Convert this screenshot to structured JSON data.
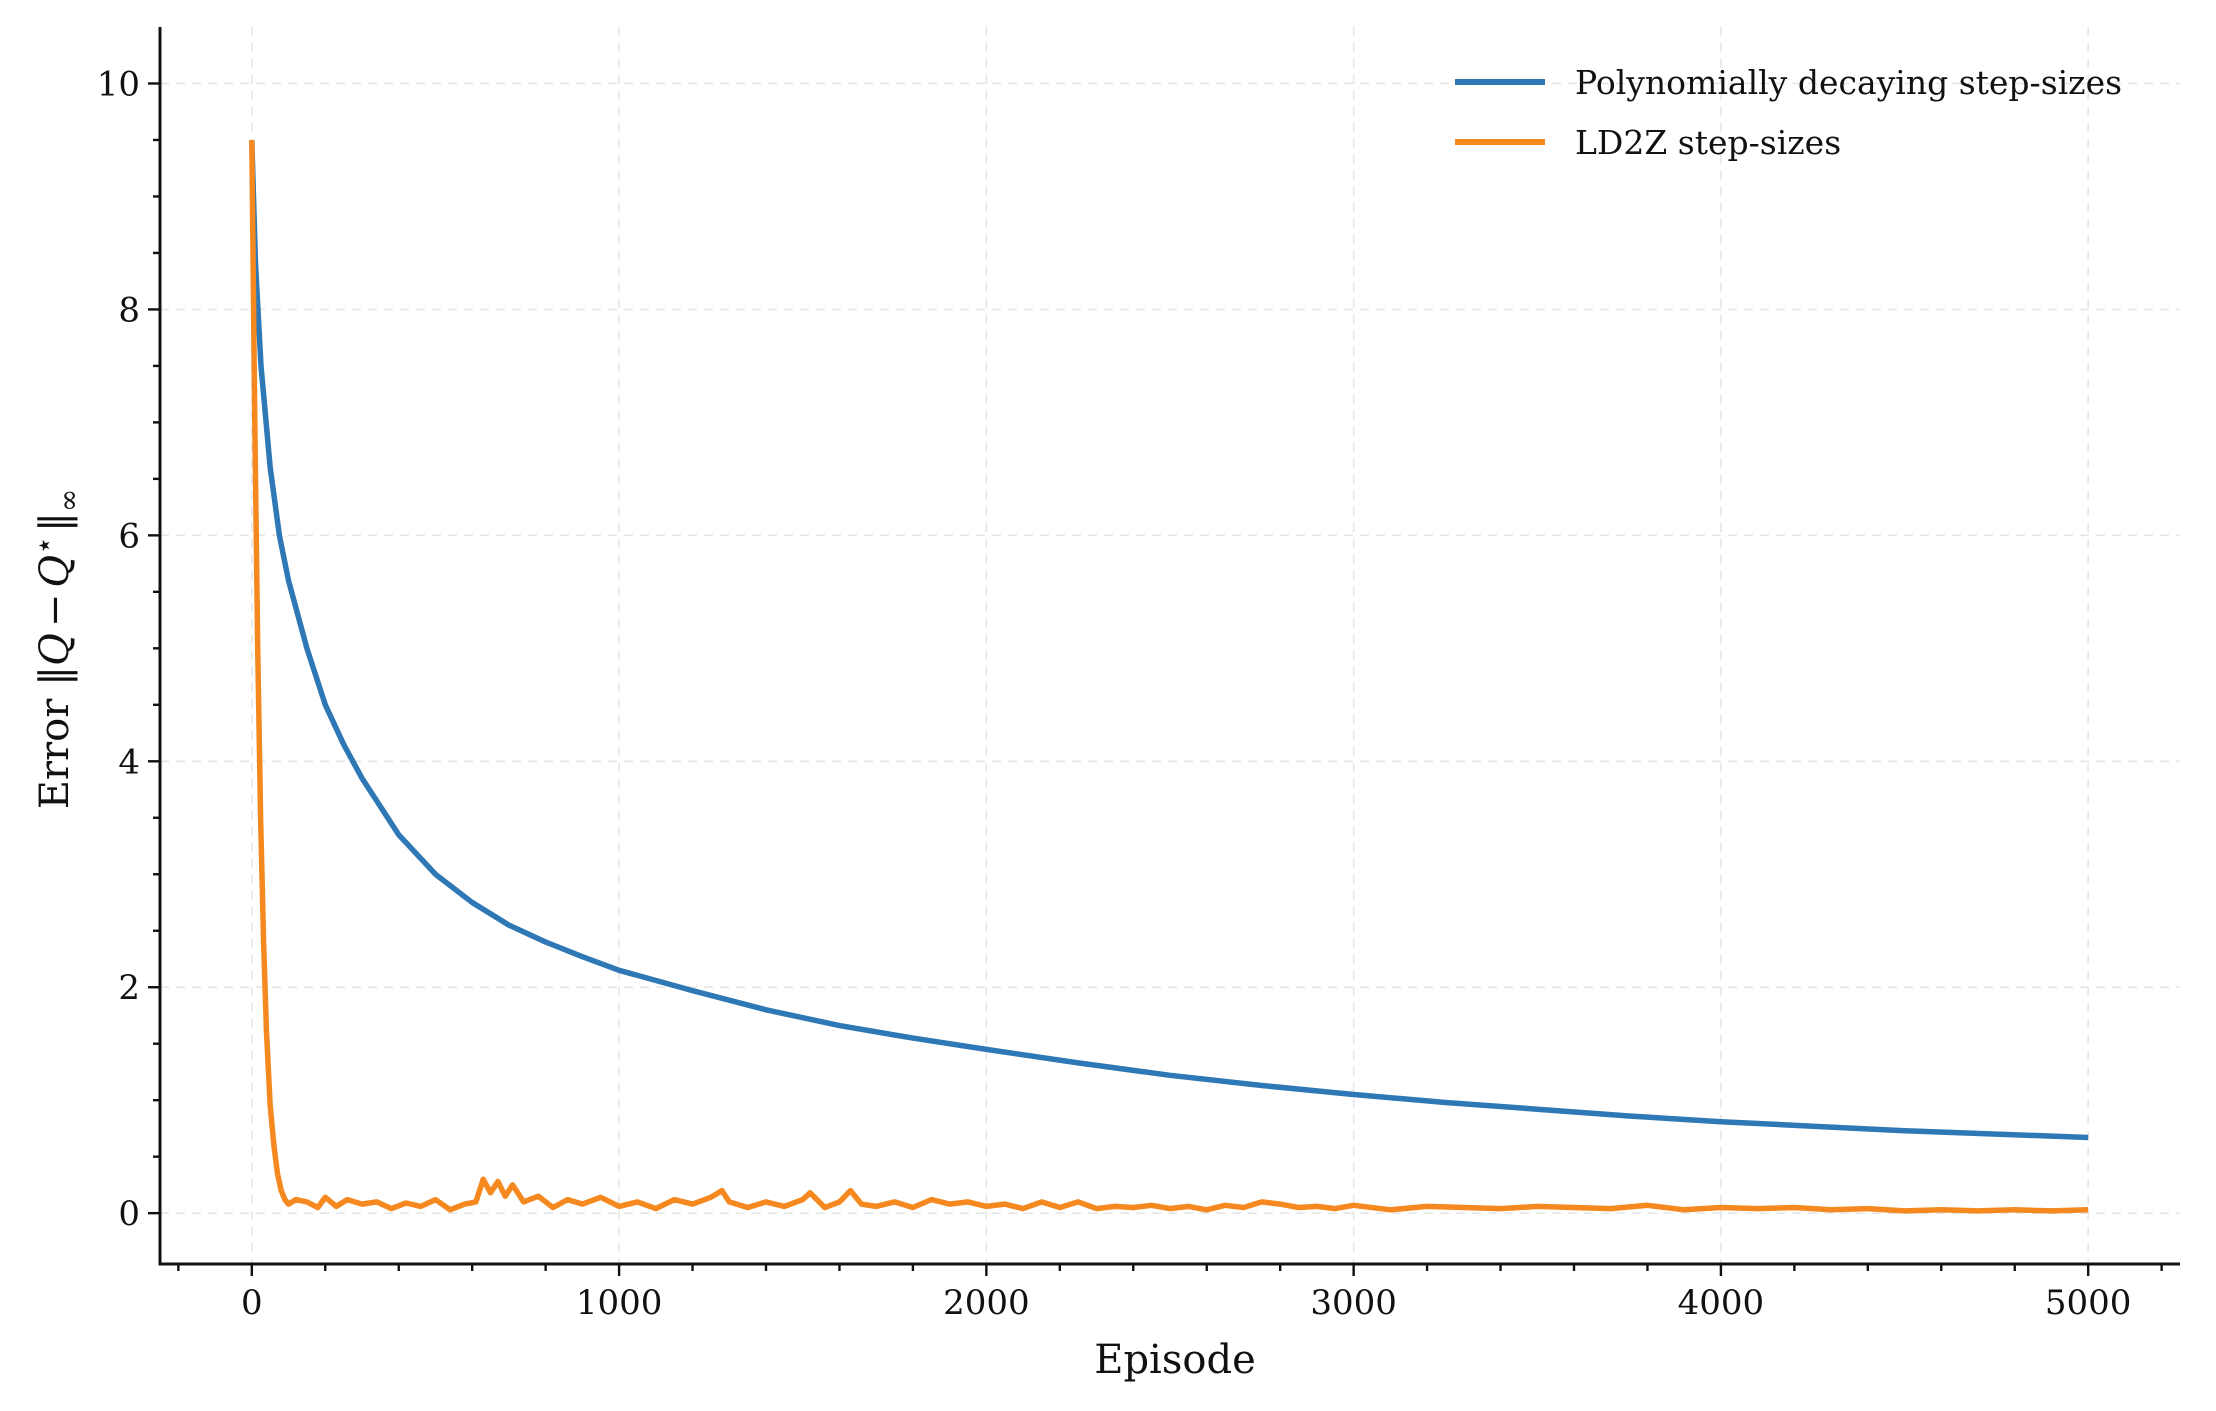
{
  "chart_data": {
    "type": "line",
    "title": "",
    "xlabel": "Episode",
    "ylabel": "Error ‖Q − Q⋆‖∞",
    "ylabel_parts": {
      "prefix": "Error ‖",
      "var": "Q",
      "minus": "−",
      "var2": "Q",
      "star": "⋆",
      "suffix": "‖",
      "sub": "∞"
    },
    "xlim": [
      -250,
      5250
    ],
    "ylim": [
      -0.45,
      10.5
    ],
    "xticks": [
      0,
      1000,
      2000,
      3000,
      4000,
      5000
    ],
    "xtick_labels": [
      "0",
      "1000",
      "2000",
      "3000",
      "4000",
      "5000"
    ],
    "yticks": [
      0,
      2,
      4,
      6,
      8,
      10
    ],
    "ytick_labels": [
      "0",
      "2",
      "4",
      "6",
      "8",
      "10"
    ],
    "grid": true,
    "legend_position": "top-right",
    "series": [
      {
        "name": "Polynomially decaying step-sizes",
        "color": "#2e78b5",
        "x": [
          0,
          10,
          25,
          50,
          75,
          100,
          150,
          200,
          250,
          300,
          400,
          500,
          600,
          700,
          800,
          900,
          1000,
          1200,
          1400,
          1600,
          1800,
          2000,
          2250,
          2500,
          2750,
          3000,
          3250,
          3500,
          3750,
          4000,
          4250,
          4500,
          4750,
          5000
        ],
        "y": [
          9.5,
          8.4,
          7.5,
          6.6,
          6.0,
          5.6,
          5.0,
          4.5,
          4.15,
          3.85,
          3.35,
          3.0,
          2.75,
          2.55,
          2.4,
          2.27,
          2.15,
          1.97,
          1.8,
          1.66,
          1.55,
          1.45,
          1.33,
          1.22,
          1.13,
          1.05,
          0.98,
          0.92,
          0.86,
          0.81,
          0.77,
          0.73,
          0.7,
          0.67
        ]
      },
      {
        "name": "LD2Z step-sizes",
        "color": "#f5891f",
        "x": [
          0,
          8,
          16,
          24,
          32,
          40,
          50,
          60,
          70,
          80,
          90,
          100,
          120,
          150,
          180,
          200,
          230,
          260,
          300,
          340,
          380,
          420,
          460,
          500,
          540,
          580,
          610,
          630,
          650,
          670,
          690,
          710,
          740,
          780,
          820,
          860,
          900,
          950,
          1000,
          1050,
          1100,
          1150,
          1200,
          1250,
          1280,
          1300,
          1350,
          1400,
          1450,
          1500,
          1520,
          1560,
          1600,
          1630,
          1660,
          1700,
          1750,
          1800,
          1850,
          1900,
          1950,
          2000,
          2050,
          2100,
          2150,
          2200,
          2250,
          2300,
          2350,
          2400,
          2450,
          2500,
          2550,
          2600,
          2650,
          2700,
          2750,
          2800,
          2850,
          2900,
          2950,
          3000,
          3100,
          3200,
          3300,
          3400,
          3500,
          3600,
          3700,
          3800,
          3900,
          4000,
          4100,
          4200,
          4300,
          4400,
          4500,
          4600,
          4700,
          4800,
          4900,
          5000
        ],
        "y": [
          9.5,
          7.0,
          5.0,
          3.5,
          2.4,
          1.6,
          0.95,
          0.6,
          0.35,
          0.2,
          0.12,
          0.08,
          0.12,
          0.1,
          0.05,
          0.14,
          0.06,
          0.12,
          0.08,
          0.1,
          0.04,
          0.09,
          0.06,
          0.12,
          0.03,
          0.08,
          0.1,
          0.3,
          0.18,
          0.28,
          0.15,
          0.25,
          0.1,
          0.15,
          0.05,
          0.12,
          0.08,
          0.14,
          0.06,
          0.1,
          0.04,
          0.12,
          0.08,
          0.14,
          0.2,
          0.1,
          0.05,
          0.1,
          0.06,
          0.12,
          0.18,
          0.05,
          0.1,
          0.2,
          0.08,
          0.06,
          0.1,
          0.05,
          0.12,
          0.08,
          0.1,
          0.06,
          0.08,
          0.04,
          0.1,
          0.05,
          0.1,
          0.04,
          0.06,
          0.05,
          0.07,
          0.04,
          0.06,
          0.03,
          0.07,
          0.05,
          0.1,
          0.08,
          0.05,
          0.06,
          0.04,
          0.07,
          0.03,
          0.06,
          0.05,
          0.04,
          0.06,
          0.05,
          0.04,
          0.07,
          0.03,
          0.05,
          0.04,
          0.05,
          0.03,
          0.04,
          0.02,
          0.03,
          0.02,
          0.03,
          0.02,
          0.03
        ]
      }
    ]
  }
}
